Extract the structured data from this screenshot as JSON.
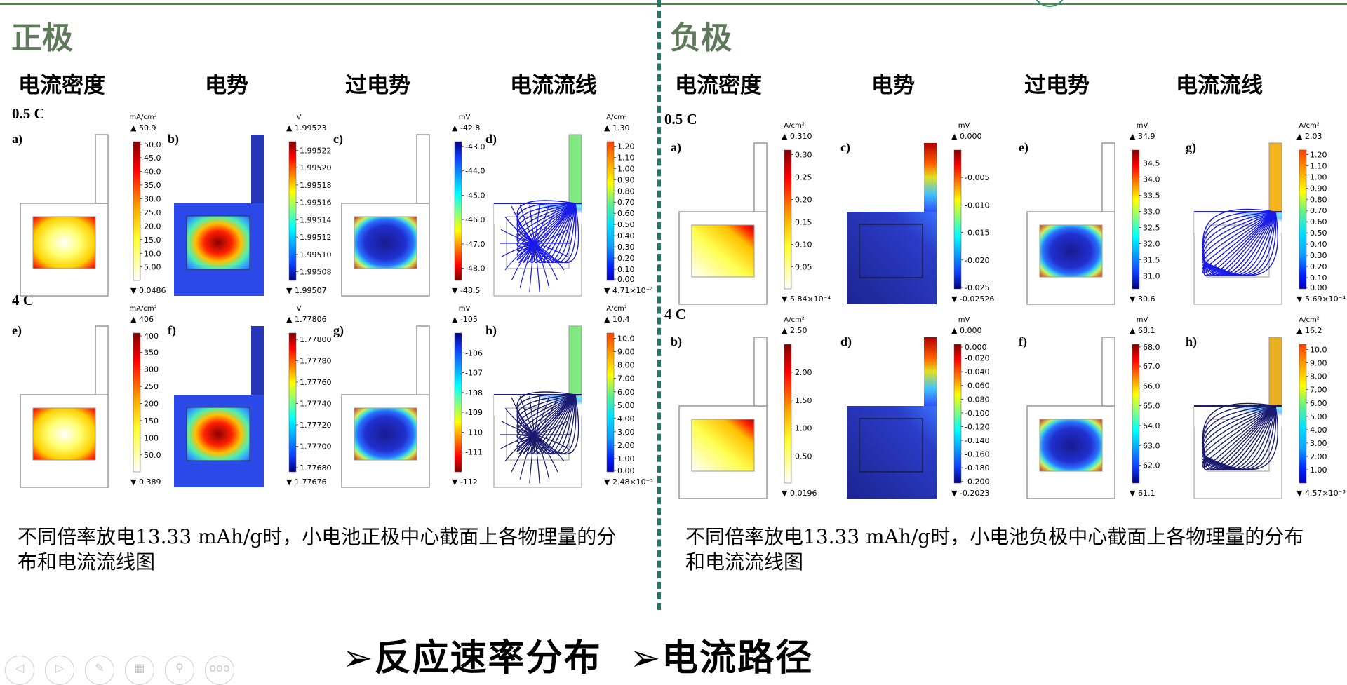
{
  "colors": {
    "title": "#5f7a5a",
    "divider": "#1a7a6a"
  },
  "left": {
    "title": "正极",
    "headers": [
      "电流密度",
      "电势",
      "过电势",
      "电流流线"
    ],
    "rates": [
      "0.5 C",
      "4 C"
    ],
    "caption": "不同倍率放电13.33  mAh/g时，小电池正极中心截面上各物理量的分布和电流流线图",
    "panels": [
      {
        "label": "(a)",
        "type": "density",
        "unit": "mA/cm²",
        "max": "▲ 50.9",
        "min": "▼ 0.0486",
        "range": [
          0.0486,
          50.9
        ],
        "ticks": [
          "50.0",
          "45.0",
          "40.0",
          "35.0",
          "30.0",
          "25.0",
          "20.0",
          "15.0",
          "10.0",
          "5.00"
        ],
        "cmap": "heat"
      },
      {
        "label": "(b)",
        "type": "potential",
        "unit": "V",
        "max": "▲ 1.99523",
        "min": "▼ 1.99507",
        "range": [
          1.99507,
          1.99523
        ],
        "ticks": [
          "1.99522",
          "1.99520",
          "1.99518",
          "1.99516",
          "1.99514",
          "1.99512",
          "1.99510",
          "1.99508"
        ],
        "cmap": "jet"
      },
      {
        "label": "(c)",
        "type": "over",
        "unit": "mV",
        "max": "▲ -42.8",
        "min": "▼ -48.5",
        "range": [
          -48.5,
          -42.8
        ],
        "ticks": [
          "-43.0",
          "-44.0",
          "-45.0",
          "-46.0",
          "-47.0",
          "-48.0"
        ],
        "cmap": "jet_r"
      },
      {
        "label": "(d)",
        "type": "stream",
        "unit": "A/cm²",
        "max": "▲ 1.30",
        "min": "▼ 4.71×10⁻⁴",
        "range": [
          0,
          1.24
        ],
        "ticks": [
          "1.20",
          "1.10",
          "1.00",
          "0.90",
          "0.80",
          "0.70",
          "0.60",
          "0.50",
          "0.40",
          "0.30",
          "0.20",
          "0.10",
          "0.00"
        ],
        "cmap": "steps",
        "tab": "#80e880",
        "line": "#1a1ae8"
      },
      {
        "label": "(e)",
        "type": "density",
        "unit": "mA/cm²",
        "max": "▲ 406",
        "min": "▼ 0.389",
        "range": [
          0.389,
          406
        ],
        "ticks": [
          "400",
          "350",
          "300",
          "250",
          "200",
          "150",
          "100",
          "50.0"
        ],
        "cmap": "heat"
      },
      {
        "label": "(f)",
        "type": "potential",
        "unit": "V",
        "max": "▲ 1.77806",
        "min": "▼ 1.77676",
        "range": [
          1.77676,
          1.77806
        ],
        "ticks": [
          "1.77800",
          "1.77780",
          "1.77760",
          "1.77740",
          "1.77720",
          "1.77700",
          "1.77680"
        ],
        "cmap": "jet"
      },
      {
        "label": "(g)",
        "type": "over",
        "unit": "mV",
        "max": "▲ -105",
        "min": "▼ -112",
        "range": [
          -112,
          -105
        ],
        "ticks": [
          "-106",
          "-107",
          "-108",
          "-109",
          "-110",
          "-111"
        ],
        "cmap": "jet_r"
      },
      {
        "label": "(h)",
        "type": "stream",
        "unit": "A/cm²",
        "max": "▲ 10.4",
        "min": "▼ 2.48×10⁻³",
        "range": [
          0,
          10.4
        ],
        "ticks": [
          "10.0",
          "9.00",
          "8.00",
          "7.00",
          "6.00",
          "5.00",
          "4.00",
          "3.00",
          "2.00",
          "1.00",
          "0.00"
        ],
        "cmap": "steps",
        "tab": "#80e880",
        "line": "#1a1a70"
      }
    ]
  },
  "right": {
    "title": "负极",
    "headers": [
      "电流密度",
      "电势",
      "过电势",
      "电流流线"
    ],
    "rates": [
      "0.5 C",
      "4 C"
    ],
    "caption": "不同倍率放电13.33 mAh/g时，小电池负极中心截面上各物理量的分布和电流流线图",
    "panels": [
      {
        "label": "(a)",
        "type": "densityR",
        "unit": "A/cm²",
        "max": "▲ 0.310",
        "min": "▼ 5.84×10⁻⁴",
        "range": [
          0.000584,
          0.31
        ],
        "ticks": [
          "0.30",
          "0.25",
          "0.20",
          "0.15",
          "0.10",
          "0.05"
        ],
        "cmap": "heat"
      },
      {
        "label": "(c)",
        "type": "potentialR",
        "unit": "mV",
        "max": "▲ 0.000",
        "min": "▼ -0.02526",
        "range": [
          -0.02526,
          0
        ],
        "ticks": [
          "-0.005",
          "-0.010",
          "-0.015",
          "-0.020",
          "-0.025"
        ],
        "cmap": "jet"
      },
      {
        "label": "(e)",
        "type": "over",
        "unit": "mV",
        "max": "▲ 34.9",
        "min": "▼ 30.6",
        "range": [
          30.6,
          34.9
        ],
        "ticks": [
          "34.5",
          "34.0",
          "33.5",
          "33.0",
          "32.5",
          "32.0",
          "31.5",
          "31.0"
        ],
        "cmap": "jet"
      },
      {
        "label": "(g)",
        "type": "streamR",
        "unit": "A/cm²",
        "max": "▲ 2.03",
        "min": "▼ 5.69×10⁻⁴",
        "range": [
          0,
          1.24
        ],
        "ticks": [
          "1.20",
          "1.10",
          "1.00",
          "0.90",
          "0.80",
          "0.70",
          "0.60",
          "0.50",
          "0.40",
          "0.30",
          "0.20",
          "0.10",
          "0.00"
        ],
        "cmap": "steps",
        "tab": "#f5b320",
        "line": "#1a1ae8"
      },
      {
        "label": "(b)",
        "type": "densityR",
        "unit": "A/cm²",
        "max": "▲ 2.50",
        "min": "▼ 0.0196",
        "range": [
          0.0196,
          2.5
        ],
        "ticks": [
          "2.00",
          "1.50",
          "1.00",
          "0.50"
        ],
        "cmap": "heat"
      },
      {
        "label": "(d)",
        "type": "potentialR",
        "unit": "mV",
        "max": "▲ 0.000",
        "min": "▼ -0.2023",
        "range": [
          -0.2023,
          0
        ],
        "ticks": [
          "0.000",
          "-0.020",
          "-0.040",
          "-0.060",
          "-0.080",
          "-0.100",
          "-0.120",
          "-0.140",
          "-0.160",
          "-0.180",
          "-0.200"
        ],
        "cmap": "jet"
      },
      {
        "label": "(f)",
        "type": "over",
        "unit": "mV",
        "max": "▲ 68.1",
        "min": "▼ 61.1",
        "range": [
          61.1,
          68.1
        ],
        "ticks": [
          "68.0",
          "67.0",
          "66.0",
          "65.0",
          "64.0",
          "63.0",
          "62.0"
        ],
        "cmap": "jet"
      },
      {
        "label": "(h)",
        "type": "streamR",
        "unit": "A/cm²",
        "max": "▲ 16.2",
        "min": "▼ 4.57×10⁻³",
        "range": [
          0,
          10.4
        ],
        "ticks": [
          "10.0",
          "9.00",
          "8.00",
          "7.00",
          "6.00",
          "5.00",
          "4.00",
          "3.00",
          "2.00",
          "1.00"
        ],
        "cmap": "steps",
        "tab": "#e8b020",
        "line": "#1a1a70"
      }
    ]
  },
  "bottom": {
    "items": [
      "➢反应速率分布",
      "➢电流路径"
    ]
  },
  "nav": {
    "icons": [
      "prev-icon",
      "next-icon",
      "pen-icon",
      "slides-icon",
      "zoom-icon",
      "more-icon"
    ],
    "glyphs": [
      "◁",
      "▷",
      "✎",
      "▦",
      "⚲",
      "ooo"
    ]
  }
}
